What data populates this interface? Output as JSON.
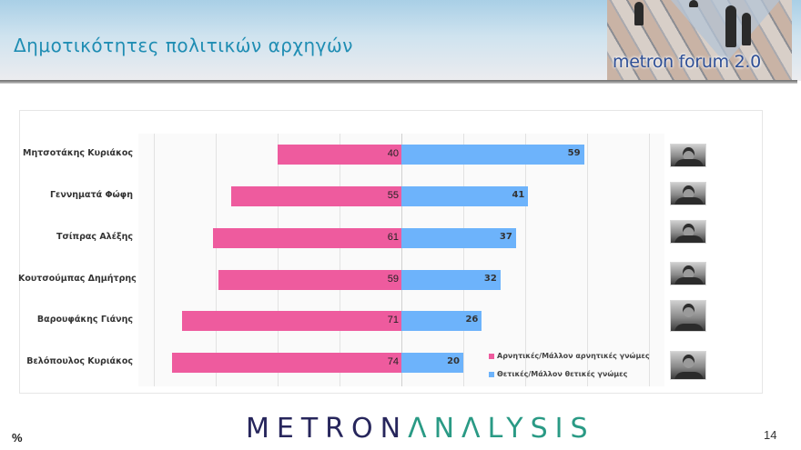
{
  "header": {
    "title": "Δημοτικότητες πολιτικών αρχηγών",
    "logo_text": "metron forum 2.0"
  },
  "colors": {
    "negative": "#ee5b9e",
    "positive": "#6db3fb",
    "title": "#1f8db3",
    "brand_dark": "#27265c",
    "brand_teal": "#2a9a85"
  },
  "legend": {
    "negative_label": "Αρνητικές/Μάλλον αρνητικές γνώμες",
    "positive_label": "Θετικές/Μάλλον θετικές γνώμες"
  },
  "chart_data": {
    "type": "bar",
    "orientation": "horizontal-diverging",
    "title": "Δημοτικότητες πολιτικών αρχηγών",
    "unit": "%",
    "categories": [
      "Μητσοτάκης Κυριάκος",
      "Γεννηματά Φώφη",
      "Τσίπρας Αλέξης",
      "Κουτσούμπας Δημήτρης",
      "Βαρουφάκης Γιάνης",
      "Βελόπουλος Κυριάκος"
    ],
    "series": [
      {
        "name": "Αρνητικές/Μάλλον αρνητικές γνώμες",
        "color": "#ee5b9e",
        "values": [
          40,
          55,
          61,
          59,
          71,
          74
        ]
      },
      {
        "name": "Θετικές/Μάλλον θετικές γνώμες",
        "color": "#6db3fb",
        "values": [
          59,
          41,
          37,
          32,
          26,
          20
        ]
      }
    ],
    "xlim": [
      -85,
      85
    ],
    "grid": true,
    "grid_step": 20,
    "legend_position": "lower-right inside plot",
    "rows": [
      {
        "name": "Μητσοτάκης Κυριάκος",
        "negative": 40,
        "positive": 59
      },
      {
        "name": "Γεννηματά Φώφη",
        "negative": 55,
        "positive": 41
      },
      {
        "name": "Τσίπρας Αλέξης",
        "negative": 61,
        "positive": 37
      },
      {
        "name": "Κουτσούμπας Δημήτρης",
        "negative": 59,
        "positive": 32
      },
      {
        "name": "Βαρουφάκης Γιάνης",
        "negative": 71,
        "positive": 26
      },
      {
        "name": "Βελόπουλος Κυριάκος",
        "negative": 74,
        "positive": 20
      }
    ]
  },
  "footer": {
    "unit_symbol": "%",
    "logo_part1": "METRON",
    "logo_part2": "ΛNΛLYSIS",
    "page_number": "14"
  }
}
